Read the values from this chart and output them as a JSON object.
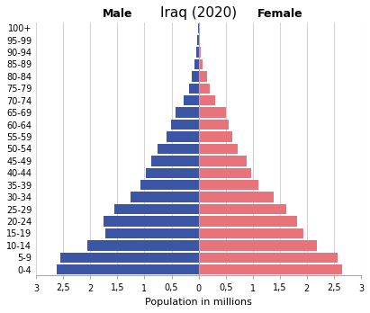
{
  "title": "Iraq (2020)",
  "age_groups": [
    "0-4",
    "5-9",
    "10-14",
    "15-19",
    "20-24",
    "25-29",
    "30-34",
    "35-39",
    "40-44",
    "45-49",
    "50-54",
    "55-59",
    "60-64",
    "65-69",
    "70-74",
    "75-79",
    "80-84",
    "85-89",
    "90-94",
    "95-99",
    "100+"
  ],
  "male": [
    2.62,
    2.55,
    2.05,
    1.72,
    1.75,
    1.55,
    1.25,
    1.08,
    0.97,
    0.87,
    0.75,
    0.59,
    0.51,
    0.42,
    0.27,
    0.18,
    0.13,
    0.07,
    0.04,
    0.02,
    0.01
  ],
  "female": [
    2.65,
    2.56,
    2.18,
    1.94,
    1.82,
    1.62,
    1.38,
    1.1,
    0.97,
    0.88,
    0.72,
    0.63,
    0.55,
    0.5,
    0.31,
    0.2,
    0.15,
    0.08,
    0.04,
    0.02,
    0.01
  ],
  "male_color": "#3C55A5",
  "female_color": "#E8737A",
  "xlabel": "Population in millions",
  "male_label": "Male",
  "female_label": "Female",
  "xlim": 3.0,
  "xtick_positions": [
    -3,
    -2.5,
    -2,
    -1.5,
    -1,
    -0.5,
    0,
    0.5,
    1,
    1.5,
    2,
    2.5,
    3
  ],
  "xtick_labels": [
    "3",
    "2,5",
    "2",
    "1,5",
    "1",
    "0,5",
    "0",
    "0,5",
    "1",
    "1,5",
    "2",
    "2,5",
    "3"
  ],
  "background_color": "#ffffff",
  "grid_color": "#d3d3d3",
  "title_fontsize": 11,
  "axis_label_fontsize": 8,
  "tick_fontsize": 7,
  "gender_label_fontsize": 9
}
